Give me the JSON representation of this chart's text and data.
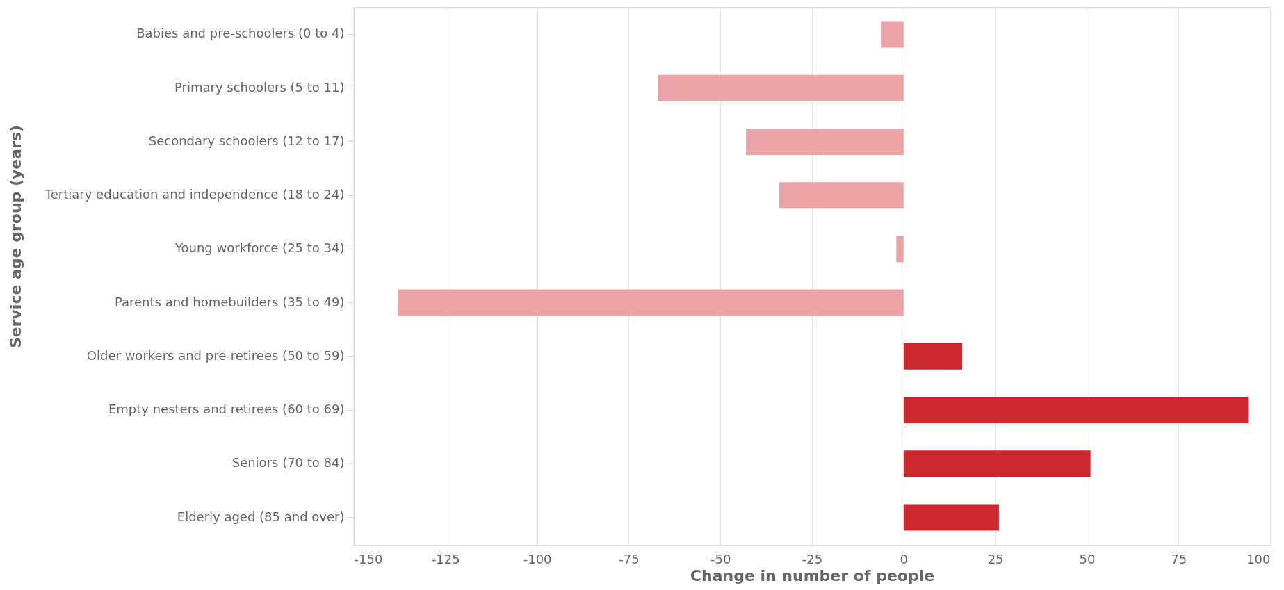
{
  "chart_data": {
    "type": "bar",
    "orientation": "horizontal",
    "xlabel": "Change in number of people",
    "ylabel": "Service age group (years)",
    "categories": [
      "Babies and pre-schoolers (0 to 4)",
      "Primary schoolers (5 to 11)",
      "Secondary schoolers (12 to 17)",
      "Tertiary education and independence (18 to 24)",
      "Young workforce (25 to 34)",
      "Parents and homebuilders (35 to 49)",
      "Older workers and pre-retirees (50 to 59)",
      "Empty nesters and retirees (60 to 69)",
      "Seniors (70 to 84)",
      "Elderly aged (85 and over)"
    ],
    "values": [
      -6,
      -67,
      -43,
      -34,
      -2,
      -138,
      16,
      94,
      51,
      26
    ],
    "colors": [
      "#eba4a6",
      "#eba4a6",
      "#eba4a6",
      "#eba4a6",
      "#eba4a6",
      "#eba4a6",
      "#c9282e",
      "#c9282e",
      "#c9282e",
      "#c9282e"
    ],
    "xlim": [
      -150,
      100
    ],
    "xticks": [
      -150,
      -125,
      -100,
      -75,
      -50,
      -25,
      0,
      25,
      50,
      75,
      100
    ],
    "grid": "x"
  }
}
